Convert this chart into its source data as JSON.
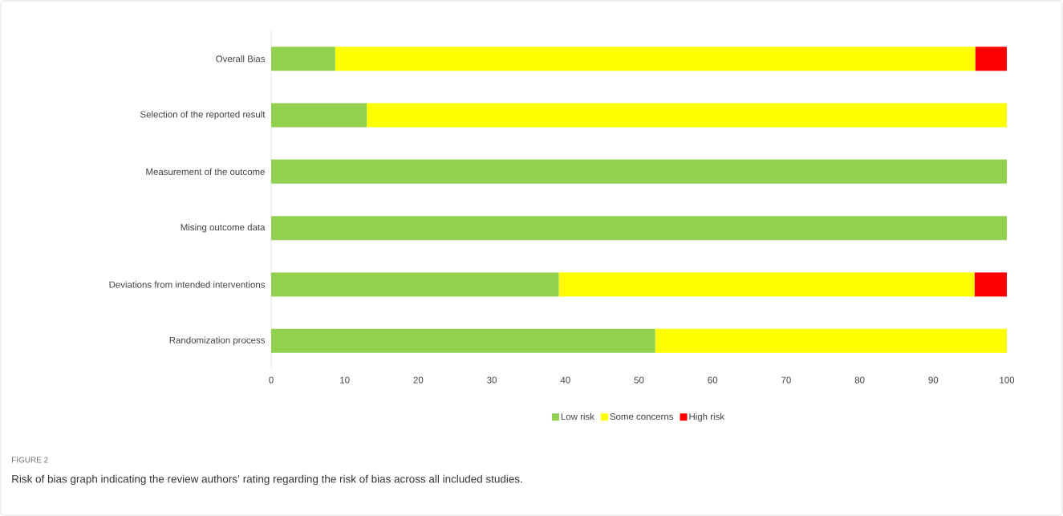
{
  "chart_data": {
    "type": "bar",
    "orientation": "horizontal",
    "stacked": true,
    "categories": [
      "Overall Bias",
      "Selection of the reported result",
      "Measurement of the outcome",
      "Mising outcome data",
      "Deviations from intended interventions",
      "Randomization process"
    ],
    "series": [
      {
        "name": "Low risk",
        "color": "#92d050",
        "values": [
          8.7,
          13,
          100,
          100,
          39.1,
          52.2
        ]
      },
      {
        "name": "Some concerns",
        "color": "#ffff00",
        "values": [
          87,
          87,
          0,
          0,
          56.5,
          47.8
        ]
      },
      {
        "name": "High risk",
        "color": "#ff0000",
        "values": [
          4.3,
          0,
          0,
          0,
          4.4,
          0
        ]
      }
    ],
    "xlim": [
      0,
      100
    ],
    "xticks": [
      0,
      10,
      20,
      30,
      40,
      50,
      60,
      70,
      80,
      90,
      100
    ],
    "legend": "bottom",
    "annotations": [
      "FIGURE 2",
      "Risk of bias graph indicating the review authors’ rating regarding the risk of bias across all included studies."
    ]
  }
}
